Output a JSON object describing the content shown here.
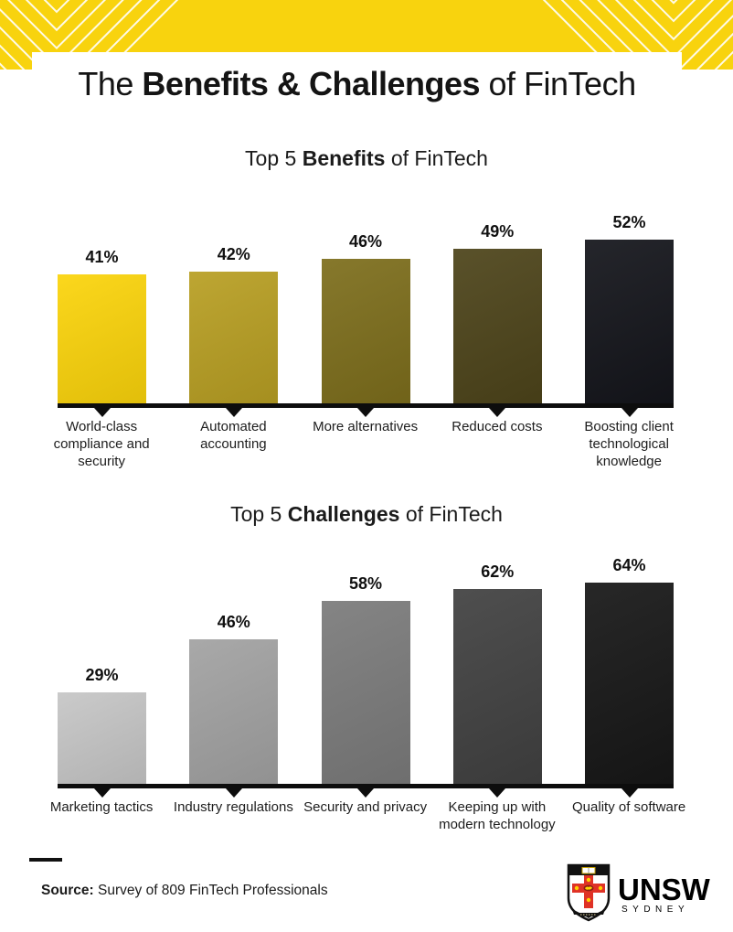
{
  "header": {
    "title_prefix": "The ",
    "title_bold": "Benefits & Challenges",
    "title_suffix": " of FinTech",
    "banner_color": "#F8D30E",
    "pattern_color": "#ffffff"
  },
  "sections": [
    {
      "title_prefix": "Top 5 ",
      "title_bold": "Benefits",
      "title_suffix": " of FinTech"
    },
    {
      "title_prefix": "Top 5 ",
      "title_bold": "Challenges",
      "title_suffix": " of FinTech"
    }
  ],
  "chart_data": [
    {
      "type": "bar",
      "title": "Top 5 Benefits of FinTech",
      "categories": [
        "World-class compliance and security",
        "Automated accounting",
        "More alternatives",
        "Reduced costs",
        "Boosting client technological knowledge"
      ],
      "values": [
        41,
        42,
        46,
        49,
        52
      ],
      "value_labels": [
        "41%",
        "42%",
        "46%",
        "49%",
        "52%"
      ],
      "bar_colors": [
        "#FBD40B",
        "#B89F23",
        "#7D6E1C",
        "#4D441A",
        "#14151B"
      ],
      "xlabel": "",
      "ylabel": "",
      "ylim": [
        0,
        60
      ],
      "grid": false,
      "legend": false
    },
    {
      "type": "bar",
      "title": "Top 5 Challenges of FinTech",
      "categories": [
        "Marketing tactics",
        "Industry regulations",
        "Security and privacy",
        "Keeping up with modern technology",
        "Quality of software"
      ],
      "values": [
        29,
        46,
        58,
        62,
        64
      ],
      "value_labels": [
        "29%",
        "46%",
        "58%",
        "62%",
        "64%"
      ],
      "bar_colors": [
        "#C6C6C6",
        "#A2A2A2",
        "#7B7B7B",
        "#414141",
        "#171717"
      ],
      "xlabel": "",
      "ylabel": "",
      "ylim": [
        0,
        70
      ],
      "grid": false,
      "legend": false
    }
  ],
  "footer": {
    "source_label": "Source:",
    "source_text": " Survey of 809 FinTech Professionals",
    "logo_word": "UNSW",
    "logo_subtitle": "SYDNEY",
    "crest_colors": {
      "cross": "#DF3226",
      "star": "#FFD200",
      "field": "#ffffff",
      "chief": "#111111"
    }
  },
  "axis_color": "#0d0d0d"
}
